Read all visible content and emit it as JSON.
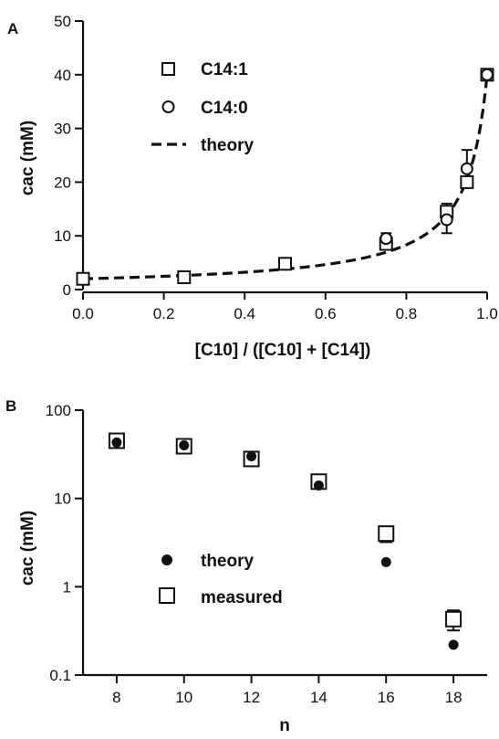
{
  "chart_data": [
    {
      "panel": "A",
      "type": "scatter",
      "xlabel": "[C10] / ([C10] + [C14])",
      "ylabel": "cac (mM)",
      "xlim": [
        0,
        1
      ],
      "ylim": [
        0,
        50
      ],
      "xticks": [
        {
          "value": 0.0,
          "label": "0.0"
        },
        {
          "value": 0.2,
          "label": "0.2"
        },
        {
          "value": 0.4,
          "label": "0.4"
        },
        {
          "value": 0.6,
          "label": "0.6"
        },
        {
          "value": 0.8,
          "label": "0.8"
        },
        {
          "value": 1.0,
          "label": "1.0"
        }
      ],
      "yticks": [
        {
          "value": 0,
          "label": "0"
        },
        {
          "value": 10,
          "label": "10"
        },
        {
          "value": 20,
          "label": "20"
        },
        {
          "value": 30,
          "label": "30"
        },
        {
          "value": 40,
          "label": "40"
        },
        {
          "value": 50,
          "label": "50"
        }
      ],
      "legend_position": "top-left",
      "series": [
        {
          "name": "C14:1",
          "marker": "square-open",
          "points": [
            {
              "x": 0.0,
              "y": 2.0
            },
            {
              "x": 0.25,
              "y": 2.3
            },
            {
              "x": 0.5,
              "y": 4.8
            },
            {
              "x": 0.75,
              "y": 8.5,
              "err": 1.0
            },
            {
              "x": 0.9,
              "y": 14.5,
              "err": 1.5
            },
            {
              "x": 0.95,
              "y": 20.0,
              "err": 1.0
            },
            {
              "x": 1.0,
              "y": 40.0
            }
          ]
        },
        {
          "name": "C14:0",
          "marker": "circle-open",
          "points": [
            {
              "x": 0.75,
              "y": 9.5,
              "err": 1.0
            },
            {
              "x": 0.9,
              "y": 13.0,
              "err": 2.5
            },
            {
              "x": 0.95,
              "y": 22.5,
              "err": 3.5
            },
            {
              "x": 1.0,
              "y": 40.0
            }
          ]
        },
        {
          "name": "theory",
          "marker": "dashed-line",
          "curve": "1/cac = (1-x)/2 + x/40"
        }
      ]
    },
    {
      "panel": "B",
      "type": "scatter",
      "xlabel": "n",
      "ylabel": "cac (mM)",
      "xlim": [
        7,
        19
      ],
      "ylim": [
        0.1,
        100
      ],
      "yscale": "log",
      "xticks": [
        {
          "value": 8,
          "label": "8"
        },
        {
          "value": 10,
          "label": "10"
        },
        {
          "value": 12,
          "label": "12"
        },
        {
          "value": 14,
          "label": "14"
        },
        {
          "value": 16,
          "label": "16"
        },
        {
          "value": 18,
          "label": "18"
        }
      ],
      "yticks": [
        {
          "value": 0.1,
          "label": "0.1"
        },
        {
          "value": 1,
          "label": "1"
        },
        {
          "value": 10,
          "label": "10"
        },
        {
          "value": 100,
          "label": "100"
        }
      ],
      "legend_position": "bottom-center",
      "series": [
        {
          "name": "theory",
          "marker": "circle-filled",
          "points": [
            {
              "x": 8,
              "y": 43
            },
            {
              "x": 10,
              "y": 40
            },
            {
              "x": 12,
              "y": 30
            },
            {
              "x": 14,
              "y": 14
            },
            {
              "x": 16,
              "y": 1.9
            },
            {
              "x": 18,
              "y": 0.22
            }
          ]
        },
        {
          "name": "measured",
          "marker": "square-open",
          "points": [
            {
              "x": 8,
              "y": 45
            },
            {
              "x": 10,
              "y": 39
            },
            {
              "x": 12,
              "y": 28
            },
            {
              "x": 14,
              "y": 15.5,
              "lo": 13.5,
              "hi": 17.5
            },
            {
              "x": 16,
              "y": 4.0,
              "lo": 3.2,
              "hi": 4.8
            },
            {
              "x": 18,
              "y": 0.43,
              "lo": 0.32,
              "hi": 0.54
            }
          ]
        }
      ]
    }
  ]
}
